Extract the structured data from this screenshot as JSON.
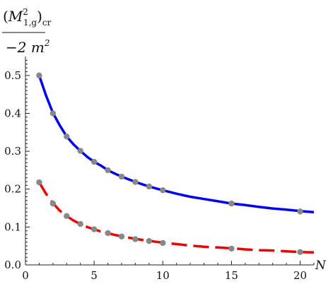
{
  "chart_data": {
    "type": "line",
    "title": "",
    "xlabel": "N",
    "ylabel": {
      "paren_open": "(",
      "symbol": "M",
      "superscript": "2",
      "subscript": "1,g",
      "paren_close": ")",
      "outer_subscript": "cr",
      "denominator": "−2 m",
      "denominator_superscript": "2"
    },
    "xlim": [
      0,
      21
    ],
    "ylim": [
      0,
      0.55
    ],
    "xticks": [
      0,
      5,
      10,
      15,
      20
    ],
    "xtick_labels": [
      "0",
      "5",
      "10",
      "15",
      "20"
    ],
    "yticks": [
      0,
      0.1,
      0.2,
      0.3,
      0.4,
      0.5
    ],
    "ytick_labels": [
      "0.0",
      "0.1",
      "0.2",
      "0.3",
      "0.4",
      "0.5"
    ],
    "grid": false,
    "legend": "none",
    "series": [
      {
        "style": "solid",
        "color": "#0000ee",
        "x": [
          1,
          1.5,
          2,
          2.5,
          3,
          3.5,
          4,
          4.5,
          5,
          5.5,
          6,
          6.5,
          7,
          7.5,
          8,
          8.5,
          9,
          9.5,
          10,
          11,
          12,
          13,
          14,
          15,
          16,
          17,
          18,
          19,
          20,
          21
        ],
        "y": [
          0.5,
          0.447,
          0.401,
          0.368,
          0.339,
          0.318,
          0.301,
          0.285,
          0.272,
          0.262,
          0.25,
          0.241,
          0.233,
          0.226,
          0.219,
          0.213,
          0.207,
          0.202,
          0.197,
          0.188,
          0.18,
          0.174,
          0.168,
          0.162,
          0.158,
          0.153,
          0.149,
          0.146,
          0.142,
          0.139
        ]
      },
      {
        "style": "dashed",
        "color": "#ee0000",
        "x": [
          1,
          1.5,
          2,
          2.5,
          3,
          3.5,
          4,
          4.5,
          5,
          5.5,
          6,
          6.5,
          7,
          7.5,
          8,
          8.5,
          9,
          9.5,
          10,
          11,
          12,
          13,
          14,
          15,
          16,
          17,
          18,
          19,
          20,
          21
        ],
        "y": [
          0.218,
          0.188,
          0.163,
          0.143,
          0.129,
          0.117,
          0.108,
          0.1,
          0.094,
          0.088,
          0.084,
          0.079,
          0.076,
          0.072,
          0.069,
          0.066,
          0.064,
          0.061,
          0.059,
          0.055,
          0.051,
          0.048,
          0.046,
          0.044,
          0.041,
          0.039,
          0.038,
          0.036,
          0.034,
          0.033
        ]
      }
    ],
    "points": [
      {
        "color": "#888888",
        "x": [
          1,
          2,
          3,
          4,
          5,
          6,
          7,
          8,
          9,
          10,
          15,
          20
        ],
        "y": [
          0.5,
          0.4,
          0.339,
          0.301,
          0.272,
          0.25,
          0.233,
          0.219,
          0.207,
          0.197,
          0.162,
          0.141
        ]
      },
      {
        "color": "#888888",
        "x": [
          1,
          2,
          3,
          4,
          5,
          6,
          7,
          8,
          9,
          10,
          15,
          20
        ],
        "y": [
          0.218,
          0.162,
          0.129,
          0.108,
          0.094,
          0.084,
          0.075,
          0.068,
          0.063,
          0.058,
          0.043,
          0.034
        ]
      }
    ]
  }
}
